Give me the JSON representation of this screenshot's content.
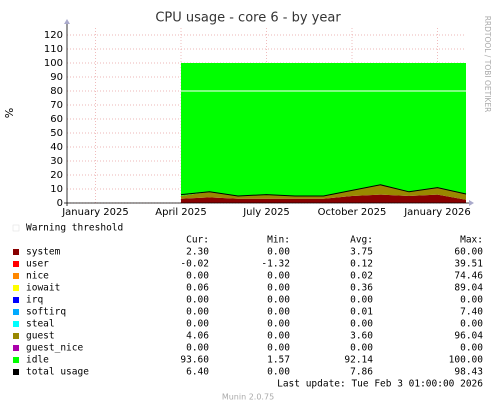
{
  "chart_data": {
    "type": "area",
    "title": "CPU usage - core 6 - by year",
    "y_label": "%",
    "side_text": "RRDTOOL / TOBI OETIKER",
    "x": [
      "2025-04",
      "2025-05",
      "2025-06",
      "2025-07",
      "2025-08",
      "2025-09",
      "2025-10",
      "2025-11",
      "2025-12",
      "2026-01",
      "2026-02"
    ],
    "xlim": [
      "2024-12",
      "2026-02"
    ],
    "xticks": [
      {
        "value": "2025-01",
        "label": "January 2025"
      },
      {
        "value": "2025-04",
        "label": "April 2025"
      },
      {
        "value": "2025-07",
        "label": "July 2025"
      },
      {
        "value": "2025-10",
        "label": "October 2025"
      },
      {
        "value": "2026-01",
        "label": "January 2026"
      }
    ],
    "ylim": [
      0,
      125
    ],
    "yticks": [
      0,
      10,
      20,
      30,
      40,
      50,
      60,
      70,
      80,
      90,
      100,
      110,
      120
    ],
    "grid": true,
    "warning_label": "Warning threshold",
    "warning_threshold": 80,
    "stats_headers": [
      "Cur:",
      "Min:",
      "Avg:",
      "Max:"
    ],
    "series": [
      {
        "name": "system",
        "color": "#880000",
        "values": [
          3,
          4,
          3,
          3,
          3,
          3,
          5,
          6,
          5,
          6,
          2.3
        ],
        "stats": [
          "2.30",
          "0.00",
          "3.75",
          "60.00"
        ]
      },
      {
        "name": "user",
        "color": "#ff0000",
        "values": [
          0,
          0,
          0,
          0,
          0,
          0,
          0,
          0,
          0,
          0,
          0
        ],
        "stats": [
          "-0.02",
          "-1.32",
          "0.12",
          "39.51"
        ]
      },
      {
        "name": "nice",
        "color": "#ff8800",
        "values": [
          0,
          0,
          0,
          0,
          0,
          0,
          0,
          0,
          0,
          0,
          0
        ],
        "stats": [
          "0.00",
          "0.00",
          "0.02",
          "74.46"
        ]
      },
      {
        "name": "iowait",
        "color": "#ffff00",
        "values": [
          0,
          0,
          0,
          0,
          0,
          0,
          0,
          0,
          0,
          0,
          0
        ],
        "stats": [
          "0.06",
          "0.00",
          "0.36",
          "89.04"
        ]
      },
      {
        "name": "irq",
        "color": "#0000ff",
        "values": [
          0,
          0,
          0,
          0,
          0,
          0,
          0,
          0,
          0,
          0,
          0
        ],
        "stats": [
          "0.00",
          "0.00",
          "0.00",
          "0.00"
        ]
      },
      {
        "name": "softirq",
        "color": "#00aaff",
        "values": [
          0,
          0,
          0,
          0,
          0,
          0,
          0,
          0,
          0,
          0,
          0
        ],
        "stats": [
          "0.00",
          "0.00",
          "0.01",
          "7.40"
        ]
      },
      {
        "name": "steal",
        "color": "#00ffff",
        "values": [
          0,
          0,
          0,
          0,
          0,
          0,
          0,
          0,
          0,
          0,
          0
        ],
        "stats": [
          "0.00",
          "0.00",
          "0.00",
          "0.00"
        ]
      },
      {
        "name": "guest",
        "color": "#998800",
        "values": [
          2,
          4,
          2,
          3,
          2,
          2,
          4,
          7,
          3,
          5,
          4.06
        ],
        "stats": [
          "4.06",
          "0.00",
          "3.60",
          "96.04"
        ]
      },
      {
        "name": "guest_nice",
        "color": "#aa00aa",
        "values": [
          0,
          0,
          0,
          0,
          0,
          0,
          0,
          0,
          0,
          0,
          0
        ],
        "stats": [
          "0.00",
          "0.00",
          "0.00",
          "0.00"
        ]
      },
      {
        "name": "idle",
        "color": "#00ff00",
        "values": [
          95,
          92,
          95,
          94,
          95,
          95,
          91,
          87,
          92,
          89,
          93.6
        ],
        "stats": [
          "93.60",
          "1.57",
          "92.14",
          "100.00"
        ]
      },
      {
        "name": "total usage",
        "color": "#000000",
        "kind": "line",
        "values": [
          6,
          8,
          5,
          6,
          5,
          5,
          9,
          13,
          8,
          11,
          6.4
        ],
        "stats": [
          "6.40",
          "0.00",
          "7.86",
          "98.43"
        ]
      }
    ],
    "last_update": "Last update: Tue Feb  3 01:00:00 2026",
    "footer": "Munin 2.0.75"
  }
}
